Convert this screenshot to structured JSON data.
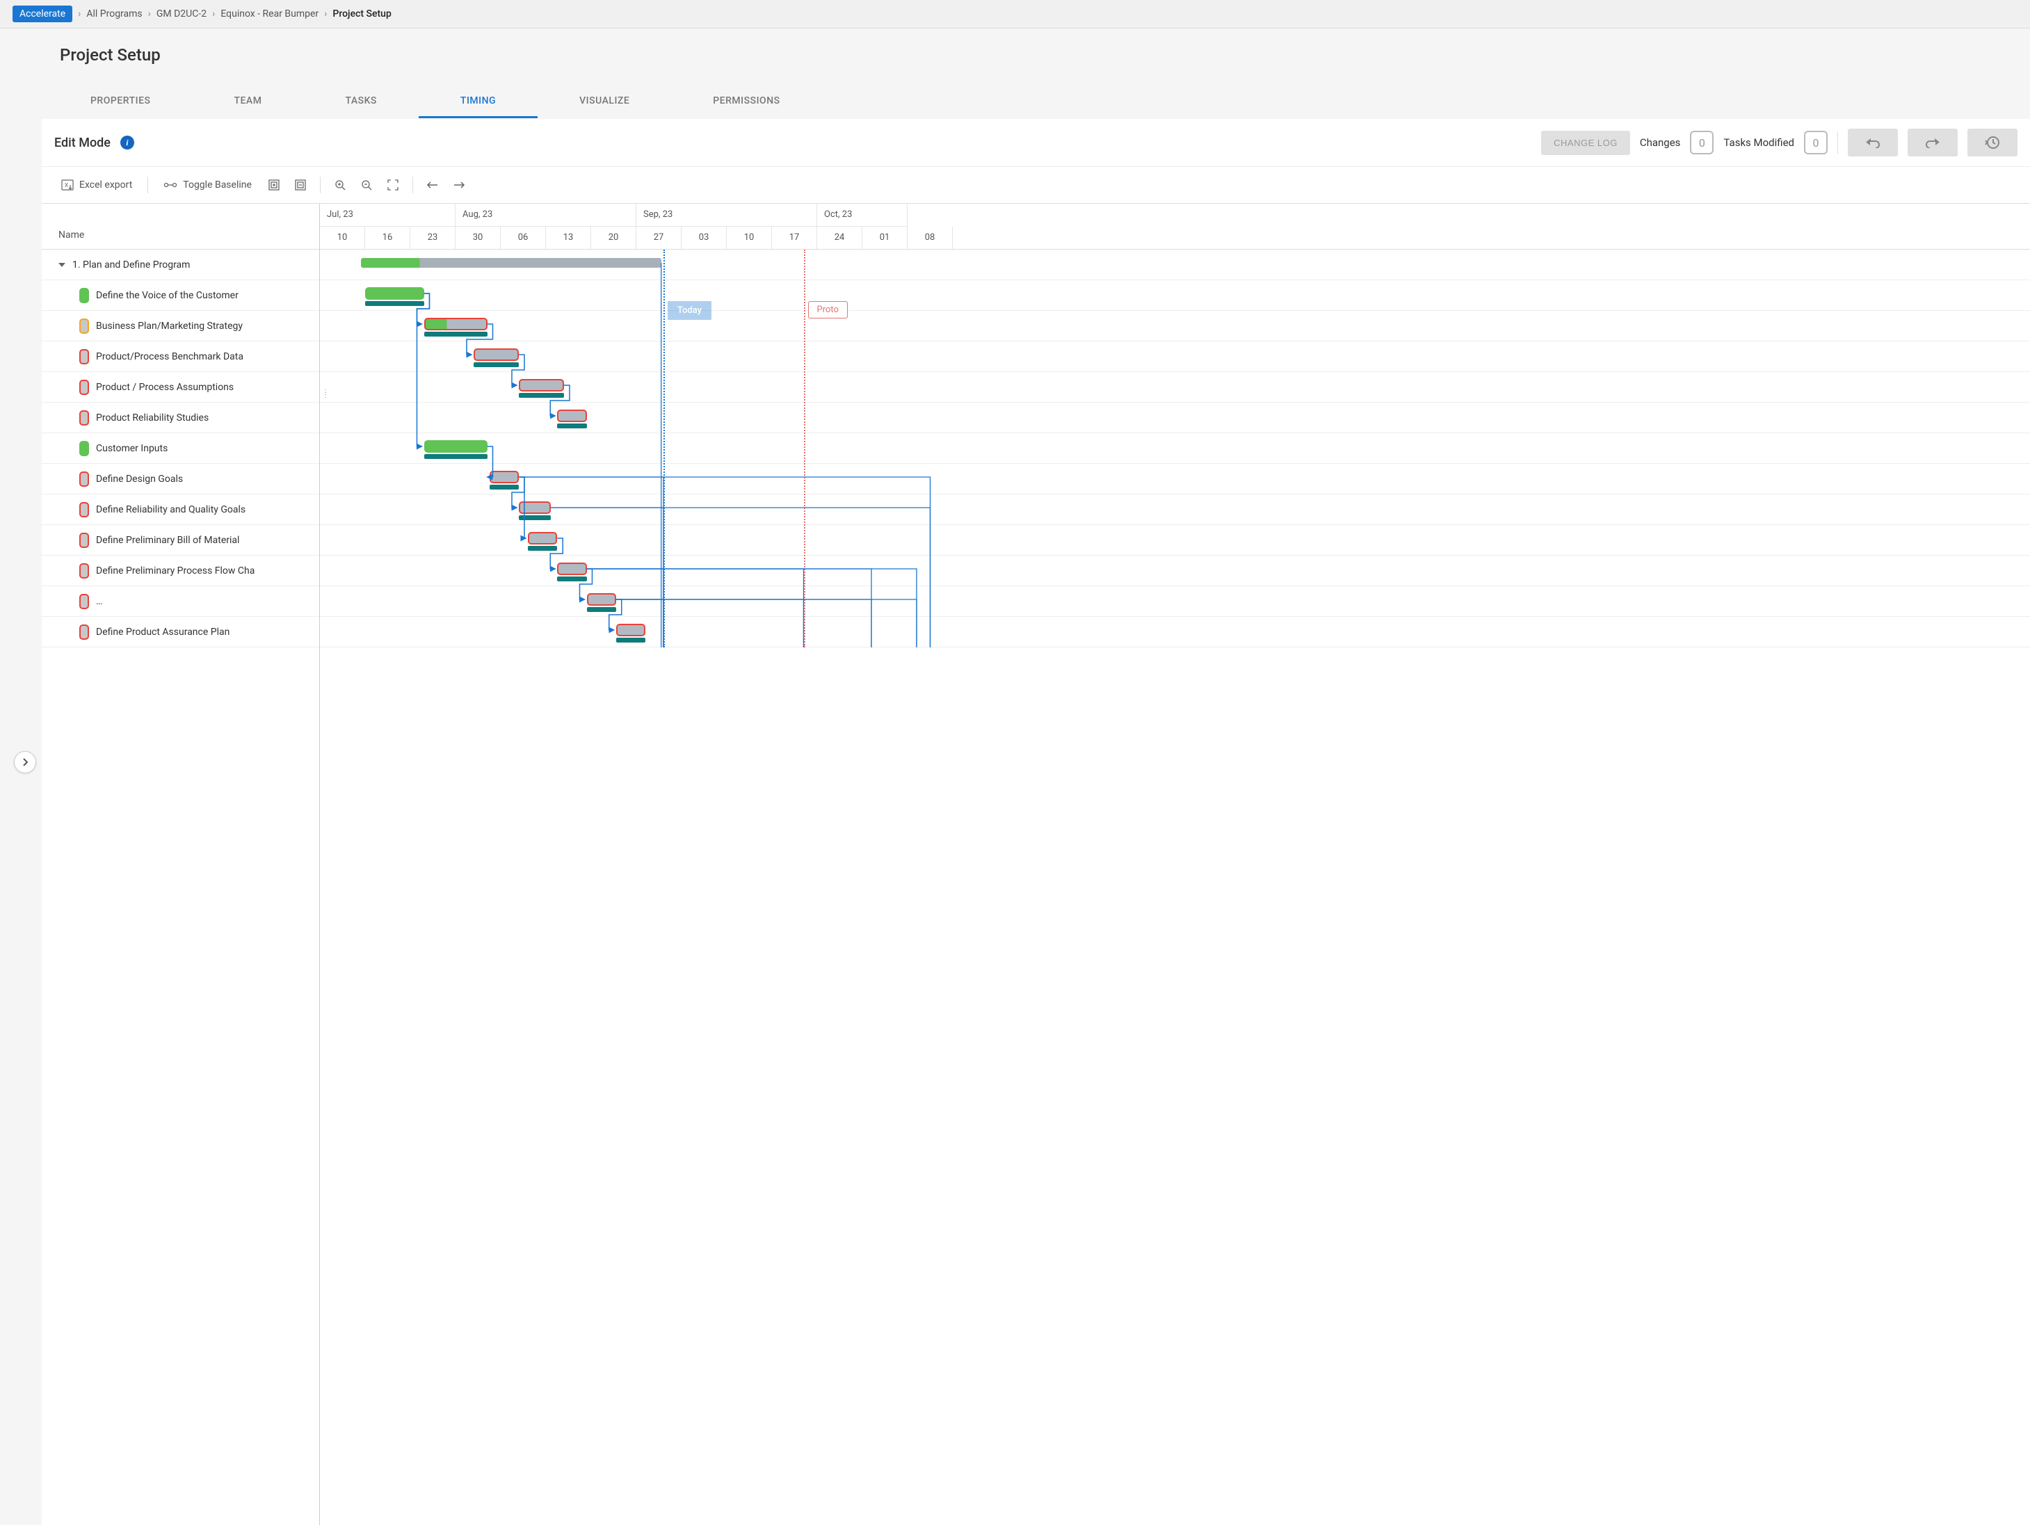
{
  "breadcrumb": {
    "brand": "Accelerate",
    "items": [
      "All Programs",
      "GM D2UC-2",
      "Equinox - Rear Bumper",
      "Project Setup"
    ]
  },
  "page": {
    "title": "Project Setup"
  },
  "tabs": {
    "items": [
      "PROPERTIES",
      "TEAM",
      "TASKS",
      "TIMING",
      "VISUALIZE",
      "PERMISSIONS"
    ],
    "active_index": 3
  },
  "edit_bar": {
    "mode_label": "Edit Mode",
    "change_log_label": "CHANGE LOG",
    "changes_label": "Changes",
    "changes_count": "0",
    "modified_label": "Tasks Modified",
    "modified_count": "0"
  },
  "toolbar": {
    "excel_export": "Excel export",
    "toggle_baseline": "Toggle Baseline"
  },
  "gantt": {
    "column_header": "Name",
    "day_width": 65,
    "months": [
      {
        "label": "Jul, 23",
        "weeks": 3
      },
      {
        "label": "Aug, 23",
        "weeks": 4
      },
      {
        "label": "Sep, 23",
        "weeks": 4
      },
      {
        "label": "Oct, 23",
        "weeks": 2
      }
    ],
    "days": [
      "10",
      "16",
      "23",
      "30",
      "06",
      "13",
      "20",
      "27",
      "03",
      "10",
      "17",
      "24",
      "01",
      "08"
    ],
    "today": {
      "col": 7.6,
      "label": "Today"
    },
    "proto": {
      "col": 10.7,
      "label": "Proto"
    },
    "colors": {
      "green": "#61c355",
      "green_dark": "#4caf50",
      "teal": "#0f7b7b",
      "grey_bar": "#b1bac2",
      "grey_bar_light": "#a7b0b9",
      "red_border": "#e8423b",
      "orange_border": "#f5a623",
      "blue_line": "#1976d2"
    },
    "tasks": [
      {
        "name": "1. Plan and Define Program",
        "parent": true,
        "bar": {
          "start": 0.9,
          "end": 7.55,
          "progress_end": 2.2,
          "color_done": "#61c355",
          "color_rest": "#a7b0b9",
          "type": "parent"
        }
      },
      {
        "name": "Define the Voice of the Customer",
        "status": "green",
        "bar": {
          "start": 1.0,
          "end": 2.3,
          "fill": "#61c355",
          "border": "#61c355"
        },
        "baseline": {
          "start": 1.0,
          "end": 2.3
        }
      },
      {
        "name": "Business Plan/Marketing Strategy",
        "status": "orange",
        "bar": {
          "start": 2.3,
          "end": 3.7,
          "fill": "#b1bac2",
          "border": "#e8423b",
          "progress": 0.35,
          "progress_fill": "#61c355"
        },
        "baseline": {
          "start": 2.3,
          "end": 3.7
        }
      },
      {
        "name": "Product/Process Benchmark Data",
        "status": "red",
        "bar": {
          "start": 3.4,
          "end": 4.4,
          "fill": "#b1bac2",
          "border": "#e8423b"
        },
        "baseline": {
          "start": 3.4,
          "end": 4.4
        }
      },
      {
        "name": "Product / Process Assumptions",
        "status": "red",
        "bar": {
          "start": 4.4,
          "end": 5.4,
          "fill": "#b1bac2",
          "border": "#e8423b"
        },
        "baseline": {
          "start": 4.4,
          "end": 5.4
        }
      },
      {
        "name": "Product Reliability Studies",
        "status": "red",
        "bar": {
          "start": 5.25,
          "end": 5.9,
          "fill": "#b1bac2",
          "border": "#e8423b"
        },
        "baseline": {
          "start": 5.25,
          "end": 5.9
        }
      },
      {
        "name": "Customer Inputs",
        "status": "green",
        "bar": {
          "start": 2.3,
          "end": 3.7,
          "fill": "#61c355",
          "border": "#61c355"
        },
        "baseline": {
          "start": 2.3,
          "end": 3.7
        }
      },
      {
        "name": "Define Design Goals",
        "status": "red",
        "bar": {
          "start": 3.75,
          "end": 4.4,
          "fill": "#b1bac2",
          "border": "#e8423b"
        },
        "baseline": {
          "start": 3.75,
          "end": 4.4
        }
      },
      {
        "name": "Define Reliability and Quality Goals",
        "status": "red",
        "bar": {
          "start": 4.4,
          "end": 5.1,
          "fill": "#b1bac2",
          "border": "#e8423b"
        },
        "baseline": {
          "start": 4.4,
          "end": 5.1
        }
      },
      {
        "name": "Define Preliminary Bill of Material",
        "status": "red",
        "bar": {
          "start": 4.6,
          "end": 5.25,
          "fill": "#b1bac2",
          "border": "#e8423b"
        },
        "baseline": {
          "start": 4.6,
          "end": 5.25
        }
      },
      {
        "name": "Define Preliminary Process Flow Cha",
        "status": "red",
        "bar": {
          "start": 5.25,
          "end": 5.9,
          "fill": "#b1bac2",
          "border": "#e8423b"
        },
        "baseline": {
          "start": 5.25,
          "end": 5.9
        }
      },
      {
        "name": "…",
        "status": "red",
        "bar": {
          "start": 5.9,
          "end": 6.55,
          "fill": "#b1bac2",
          "border": "#e8423b"
        },
        "baseline": {
          "start": 5.9,
          "end": 6.55
        }
      },
      {
        "name": "Define Product Assurance Plan",
        "status": "red",
        "bar": {
          "start": 6.55,
          "end": 7.2,
          "fill": "#b1bac2",
          "border": "#e8423b"
        },
        "baseline": {
          "start": 6.55,
          "end": 7.2
        }
      }
    ],
    "dependencies": [
      {
        "from": 1,
        "to": 2
      },
      {
        "from": 2,
        "to": 3
      },
      {
        "from": 3,
        "to": 4
      },
      {
        "from": 4,
        "to": 5
      },
      {
        "from": 1,
        "to": 6
      },
      {
        "from": 6,
        "to": 7
      },
      {
        "from": 7,
        "to": 8
      },
      {
        "from": 7,
        "to": 9
      },
      {
        "from": 9,
        "to": 10
      },
      {
        "from": 10,
        "to": 11
      },
      {
        "from": 11,
        "to": 12
      }
    ],
    "right_edges": [
      {
        "from": 0,
        "cols": [
          7.55
        ]
      },
      {
        "from": 7,
        "cols": [
          7.6,
          13.5
        ]
      },
      {
        "from": 8,
        "cols": [
          7.6,
          13.5
        ]
      },
      {
        "from": 10,
        "cols": [
          7.6,
          10.7,
          12.2,
          13.2
        ]
      },
      {
        "from": 11,
        "cols": [
          7.6,
          10.7,
          12.2,
          13.2
        ]
      }
    ]
  }
}
